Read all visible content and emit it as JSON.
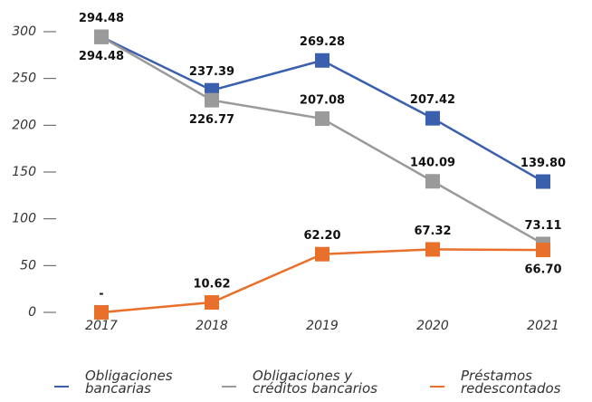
{
  "chart_data": {
    "type": "line",
    "categories": [
      "2017",
      "2018",
      "2019",
      "2020",
      "2021"
    ],
    "series": [
      {
        "name": "Obligaciones bancarias",
        "color": "#3a5fad",
        "values": [
          294.48,
          237.39,
          269.28,
          207.42,
          139.8
        ],
        "value_labels": [
          "294.48",
          "237.39",
          "269.28",
          "207.42",
          "139.80"
        ]
      },
      {
        "name": "Obligaciones y créditos bancarios",
        "color": "#9a9a9a",
        "values": [
          294.48,
          226.77,
          207.08,
          140.09,
          73.11
        ],
        "value_labels": [
          "294.48",
          "226.77",
          "207.08",
          "140.09",
          "73.11"
        ]
      },
      {
        "name": "Préstamos redescontados",
        "color": "#e8702a",
        "values": [
          0,
          10.62,
          62.2,
          67.32,
          66.7
        ],
        "value_labels": [
          "-",
          "10.62",
          "62.20",
          "67.32",
          "66.70"
        ]
      }
    ],
    "ylim": [
      0,
      300
    ],
    "yticks": [
      0,
      50,
      100,
      150,
      200,
      250,
      300
    ],
    "grid": false
  }
}
